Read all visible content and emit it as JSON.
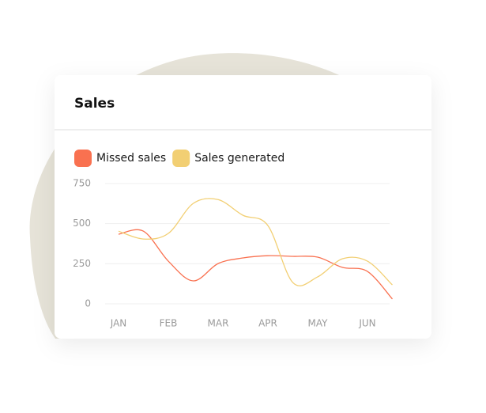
{
  "chart_data": {
    "type": "line",
    "title": "Sales",
    "categories": [
      "JAN",
      null,
      "FEB",
      null,
      "MAR",
      null,
      "APR",
      null,
      "MAY",
      null,
      "JUN",
      null
    ],
    "series": [
      {
        "name": "Missed sales",
        "color": "#f97150",
        "values": [
          434,
          453,
          266,
          143,
          251,
          286,
          300,
          296,
          291,
          227,
          202,
          30
        ]
      },
      {
        "name": "Sales generated",
        "color": "#f2cf73",
        "values": [
          453,
          404,
          439,
          626,
          650,
          552,
          488,
          133,
          168,
          281,
          266,
          118
        ]
      }
    ],
    "ylim": [
      0,
      750
    ],
    "yticks": [
      0,
      250,
      500,
      750
    ],
    "grid": true
  }
}
